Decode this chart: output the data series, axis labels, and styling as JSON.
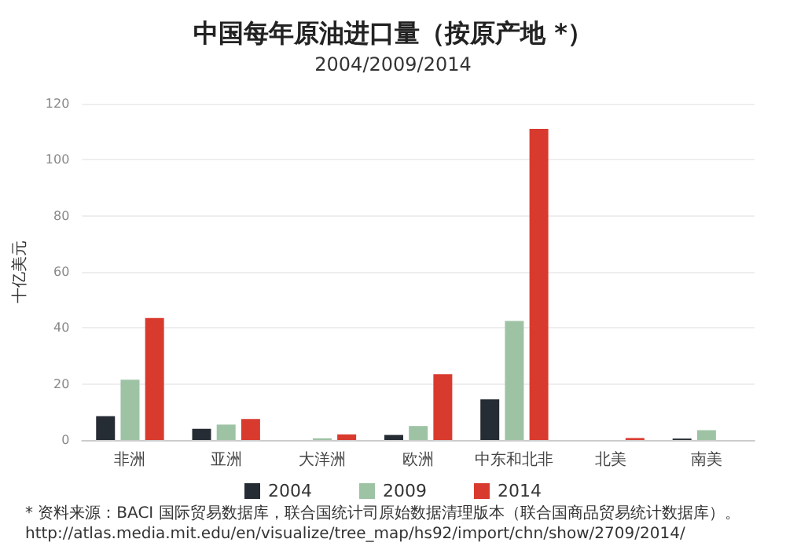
{
  "chart_data": {
    "type": "bar",
    "title": "中国每年原油进口量（按原产地 *）",
    "subtitle": "2004/2009/2014",
    "ylabel": "十亿美元",
    "categories": [
      "非洲",
      "亚洲",
      "大洋洲",
      "欧洲",
      "中东和北非",
      "北美",
      "南美"
    ],
    "series": [
      {
        "name": "2004",
        "color": "#262c33",
        "values": [
          8.5,
          4,
          null,
          1.8,
          14.5,
          null,
          0.5
        ]
      },
      {
        "name": "2009",
        "color": "#9dc3a4",
        "values": [
          21.5,
          5.5,
          0.6,
          5,
          42.5,
          null,
          3.5
        ]
      },
      {
        "name": "2014",
        "color": "#d93a2e",
        "values": [
          43.5,
          7.5,
          2,
          23.5,
          111,
          0.7,
          null
        ]
      }
    ],
    "ylim": [
      0,
      120
    ],
    "yticks": [
      0,
      20,
      40,
      60,
      80,
      100,
      120
    ],
    "grid": "y",
    "legend": "bottom",
    "annotations": [
      "* 资料来源：BACI 国际贸易数据库，联合国统计司原始数据清理版本（联合国商品贸易统计数据库）。",
      "http://atlas.media.mit.edu/en/visualize/tree_map/hs92/import/chn/show/2709/2014/"
    ]
  }
}
